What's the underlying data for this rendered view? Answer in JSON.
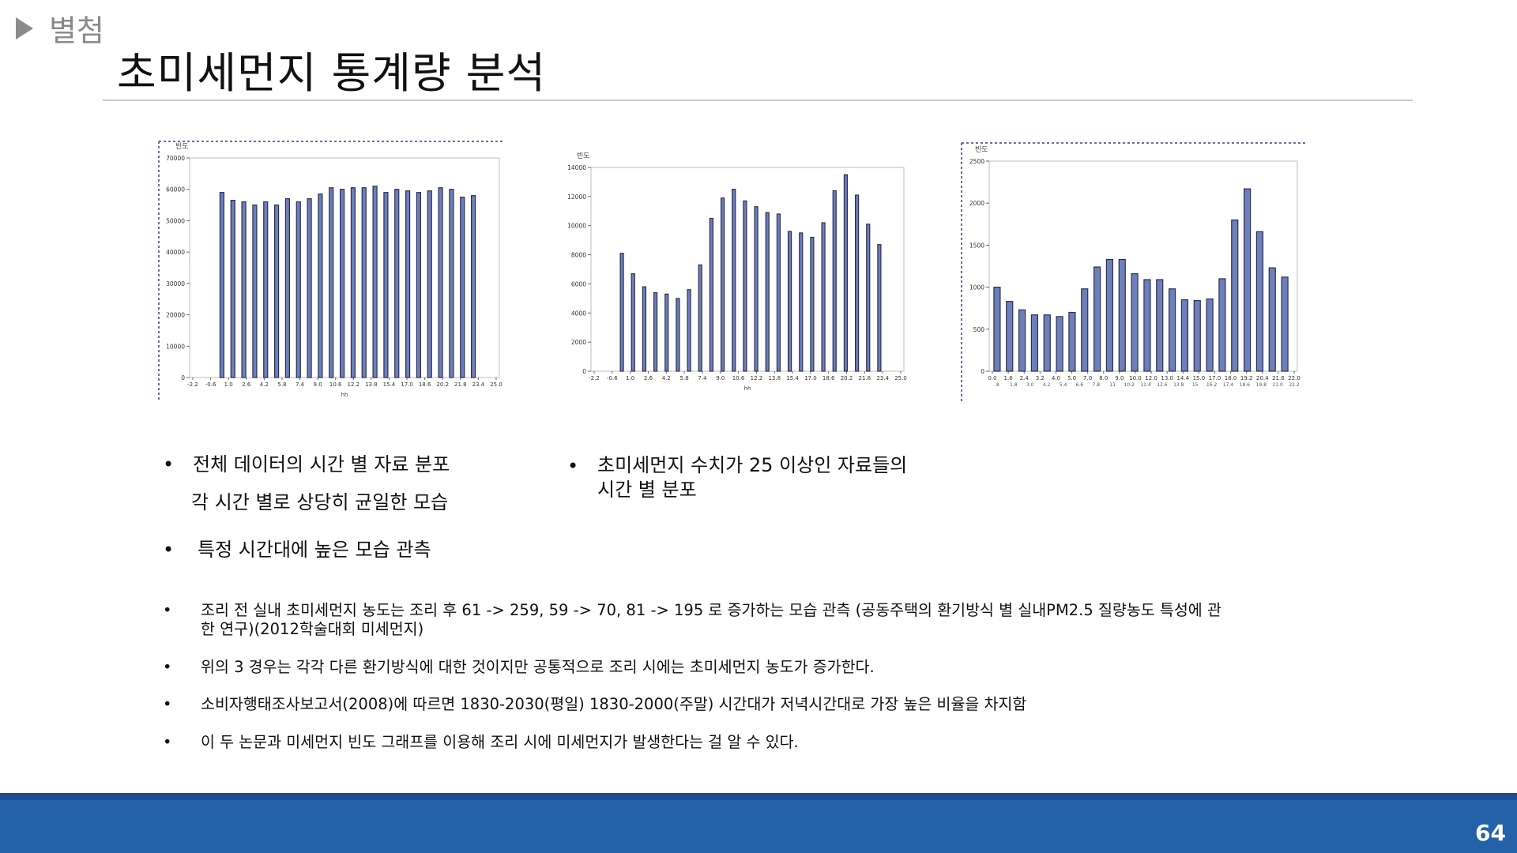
{
  "header": {
    "tag": "별첨",
    "title": "초미세먼지 통계량 분석"
  },
  "chart_data": [
    {
      "type": "bar",
      "ylabel": "빈도",
      "xlabel": "hh",
      "ylim": [
        0,
        70000
      ],
      "y_ticks": [
        "0",
        "10000",
        "20000",
        "30000",
        "40000",
        "50000",
        "60000",
        "70000"
      ],
      "x_ticks": [
        "-2.2",
        "-0.6",
        "1.0",
        "2.6",
        "4.2",
        "5.8",
        "7.4",
        "9.0",
        "10.6",
        "12.2",
        "13.8",
        "15.4",
        "17.0",
        "18.6",
        "20.2",
        "21.8",
        "23.4",
        "25.0"
      ],
      "x_range": [
        -2.2,
        25.0
      ],
      "x": [
        0,
        1,
        2,
        3,
        4,
        5,
        6,
        7,
        8,
        9,
        10,
        11,
        12,
        13,
        14,
        15,
        16,
        17,
        18,
        19,
        20,
        21,
        22,
        23
      ],
      "values": [
        59000,
        56500,
        56000,
        55000,
        56000,
        55000,
        57000,
        56000,
        57000,
        58500,
        60500,
        60000,
        60500,
        60500,
        61000,
        59000,
        60000,
        59500,
        59000,
        59500,
        60500,
        60000,
        57500,
        58000
      ]
    },
    {
      "type": "bar",
      "ylabel": "빈도",
      "xlabel": "hh",
      "ylim": [
        0,
        14000
      ],
      "y_ticks": [
        "0",
        "2000",
        "4000",
        "6000",
        "8000",
        "10000",
        "12000",
        "14000"
      ],
      "x_ticks": [
        "-2.2",
        "-0.6",
        "1.0",
        "2.6",
        "4.2",
        "5.8",
        "7.4",
        "9.0",
        "10.6",
        "12.2",
        "13.8",
        "15.4",
        "17.0",
        "18.6",
        "20.2",
        "21.8",
        "23.4",
        "25.0"
      ],
      "x_range": [
        -2.2,
        25.0
      ],
      "x": [
        0,
        1,
        2,
        3,
        4,
        5,
        6,
        7,
        8,
        9,
        10,
        11,
        12,
        13,
        14,
        15,
        16,
        17,
        18,
        19,
        20,
        21,
        22,
        23
      ],
      "values": [
        8100,
        6700,
        5800,
        5400,
        5300,
        5000,
        5600,
        7300,
        10500,
        11900,
        12500,
        11700,
        11300,
        10900,
        10800,
        9600,
        9500,
        9200,
        10200,
        12400,
        13500,
        12100,
        10100,
        8700
      ]
    },
    {
      "type": "bar",
      "ylabel": "빈도",
      "ylim": [
        0,
        2500
      ],
      "y_ticks": [
        "0",
        "500",
        "1000",
        "1500",
        "2000",
        "2500"
      ],
      "x_ticks": [
        "0.0",
        "1.6",
        "2.4",
        "3.2",
        "4.0",
        "5.0",
        "7.0",
        "8.0",
        "9.0",
        "10.0",
        "12.0",
        "13.0",
        "14.4",
        "15.0",
        "17.0",
        "18.0",
        "19.2",
        "20.4",
        "21.6",
        "22.0"
      ],
      "x_ticks_secondary": [
        ".8",
        "1.8",
        "3.0",
        "4.2",
        "5.4",
        "6.6",
        "7.8",
        "11",
        "10.2",
        "11.4",
        "12.6",
        "13.8",
        "15",
        "16.2",
        "17.4",
        "18.6",
        "19.8",
        "21.0",
        "22.2"
      ],
      "x": [
        0,
        1,
        2,
        3,
        4,
        5,
        6,
        7,
        8,
        9,
        10,
        11,
        12,
        13,
        14,
        15,
        16,
        17,
        18,
        19,
        20,
        21,
        22,
        23
      ],
      "values": [
        1000,
        830,
        730,
        670,
        670,
        650,
        700,
        980,
        1240,
        1330,
        1330,
        1160,
        1090,
        1090,
        980,
        850,
        840,
        860,
        1100,
        1800,
        2170,
        1660,
        1230,
        1120
      ]
    }
  ],
  "notes": {
    "left_bullet": "전체 데이터의 시간 별 자료 분포",
    "left_line2": "각 시간 별로 상당히 균일한 모습",
    "mid_bullet_line1": "초미세먼지 수치가 25 이상인 자료들의",
    "mid_bullet_line2": "시간 별 분포",
    "left_bullet2": "특정 시간대에 높은 모습 관측"
  },
  "details": [
    "조리 전 실내 초미세먼지 농도는 조리 후 61 -> 259, 59 -> 70, 81 -> 195 로 증가하는 모습 관측 (공동주택의 환기방식 별 실내PM2.5 질량농도 특성에 관",
    "한 연구)(2012학술대회 미세먼지)",
    "위의 3 경우는 각각 다른 환기방식에 대한 것이지만 공통적으로 조리 시에는 초미세먼지 농도가 증가한다.",
    "소비자행태조사보고서(2008)에 따르면 1830-2030(평일) 1830-2000(주말) 시간대가 저녁시간대로 가장 높은 비율을 차지함",
    "이 두 논문과 미세먼지 빈도 그래프를 이용해 조리 시에 미세먼지가 발생한다는 걸 알 수 있다."
  ],
  "footer": {
    "page": "64"
  },
  "colors": {
    "bar": "#6f7fb8",
    "bar_stroke": "#2b2f55",
    "footer": "#2461a8",
    "frame": "#3a3aa0"
  }
}
